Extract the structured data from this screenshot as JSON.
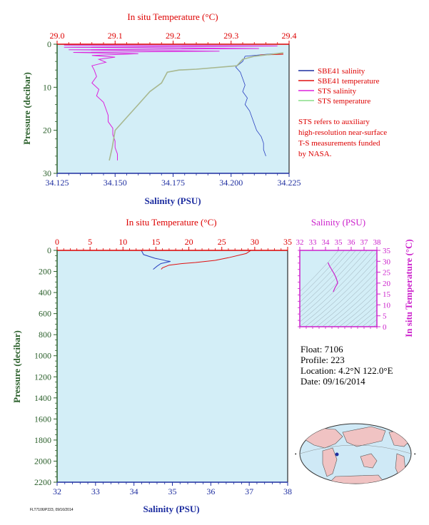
{
  "colors": {
    "panel_bg": "#d3eef7",
    "temperature_axis": "#dd0000",
    "salinity_axis": "#1e2ea0",
    "pressure_axis": "#2a5f2a",
    "sbe41_salinity": "#2a40c0",
    "sbe41_temperature": "#e01010",
    "sts_salinity": "#dd22dd",
    "sts_temperature": "#a8b890",
    "ts_diagram_axis": "#cc22cc"
  },
  "top_panel": {
    "temperature_label": "In situ Temperature (°C)",
    "salinity_label": "Salinity (PSU)",
    "pressure_label": "Pressure (decibar)",
    "temperature_ticks": [
      "29.0",
      "29.1",
      "29.2",
      "29.3",
      "29.4"
    ],
    "salinity_ticks": [
      "34.125",
      "34.150",
      "34.175",
      "34.200",
      "34.225"
    ],
    "pressure_ticks": [
      "0",
      "10",
      "20",
      "30"
    ]
  },
  "legend": {
    "items": [
      {
        "label": "SBE41 salinity",
        "color": "#1e2ea0"
      },
      {
        "label": "SBE41 temperature",
        "color": "#e01010"
      },
      {
        "label": "STS salinity",
        "color": "#dd22dd"
      },
      {
        "label": "STS temperature",
        "color": "#88dd88"
      }
    ],
    "note": [
      "STS refers to auxiliary",
      "high-resolution near-surface",
      "T-S measurements funded",
      "by NASA."
    ]
  },
  "bottom_panel": {
    "temperature_label": "In situ Temperature (°C)",
    "salinity_label": "Salinity (PSU)",
    "pressure_label": "Pressure (decibar)",
    "temperature_ticks": [
      "0",
      "5",
      "10",
      "15",
      "20",
      "25",
      "30",
      "35"
    ],
    "salinity_ticks": [
      "32",
      "33",
      "34",
      "35",
      "36",
      "37",
      "38"
    ],
    "pressure_ticks": [
      "0",
      "200",
      "400",
      "600",
      "800",
      "1000",
      "1200",
      "1400",
      "1600",
      "1800",
      "2000",
      "2200"
    ]
  },
  "ts_diagram": {
    "salinity_label": "Salinity (PSU)",
    "temperature_label": "In situ Temperature (°C)",
    "salinity_ticks": [
      "32",
      "33",
      "34",
      "35",
      "36",
      "37",
      "38"
    ],
    "temperature_ticks": [
      "0",
      "5",
      "10",
      "15",
      "20",
      "25",
      "30",
      "35"
    ]
  },
  "float_info": {
    "float": "Float:  7106",
    "profile": "Profile:  223",
    "location": "Location:  4.2°N  122.0°E",
    "date": "Date:  09/16/2014"
  },
  "footer_code": "FLT7106/P223, 09/16/2014",
  "chart_data": [
    {
      "type": "line",
      "panel": "near-surface profiles (top)",
      "xlabel": "Salinity (PSU)",
      "x2label": "In situ Temperature (°C)",
      "ylabel": "Pressure (decibar)",
      "salinity_lim": [
        34.125,
        34.225
      ],
      "temperature_lim": [
        29.0,
        29.4
      ],
      "pressure_lim": [
        0,
        30
      ],
      "y_inverted": true,
      "grid": false,
      "legend_position": "right",
      "series": [
        {
          "name": "SBE41 salinity",
          "variable": "salinity",
          "points": [
            [
              34.218,
              2.2
            ],
            [
              34.206,
              2.8
            ],
            [
              34.205,
              4.0
            ],
            [
              34.202,
              5.3
            ],
            [
              34.204,
              6.5
            ],
            [
              34.205,
              8.0
            ],
            [
              34.206,
              9.5
            ],
            [
              34.205,
              11.0
            ],
            [
              34.207,
              12.5
            ],
            [
              34.206,
              14.0
            ],
            [
              34.208,
              15.5
            ],
            [
              34.209,
              17.0
            ],
            [
              34.21,
              18.5
            ],
            [
              34.211,
              20.0
            ],
            [
              34.213,
              21.5
            ],
            [
              34.214,
              23.0
            ],
            [
              34.214,
              24.5
            ],
            [
              34.215,
              26.0
            ]
          ]
        },
        {
          "name": "SBE41 temperature",
          "variable": "temperature",
          "points": [
            [
              29.39,
              2.3
            ],
            [
              29.35,
              2.5
            ]
          ]
        },
        {
          "name": "STS salinity",
          "variable": "salinity",
          "points": [
            [
              34.128,
              0.2
            ],
            [
              34.22,
              0.4
            ],
            [
              34.128,
              0.7
            ],
            [
              34.212,
              1.0
            ],
            [
              34.13,
              1.3
            ],
            [
              34.195,
              1.6
            ],
            [
              34.132,
              1.9
            ],
            [
              34.16,
              2.2
            ],
            [
              34.14,
              2.6
            ],
            [
              34.15,
              3.0
            ],
            [
              34.143,
              3.5
            ],
            [
              34.146,
              4.2
            ],
            [
              34.14,
              5.0
            ],
            [
              34.141,
              6.0
            ],
            [
              34.142,
              7.5
            ],
            [
              34.14,
              9.0
            ],
            [
              34.143,
              10.5
            ],
            [
              34.142,
              12.0
            ],
            [
              34.145,
              13.5
            ],
            [
              34.146,
              15.0
            ],
            [
              34.147,
              16.5
            ],
            [
              34.147,
              18.0
            ],
            [
              34.149,
              19.5
            ],
            [
              34.149,
              21.0
            ],
            [
              34.15,
              22.5
            ],
            [
              34.15,
              24.0
            ],
            [
              34.151,
              25.5
            ],
            [
              34.151,
              27.0
            ]
          ]
        },
        {
          "name": "STS temperature",
          "variable": "temperature",
          "points": [
            [
              29.39,
              2.0
            ],
            [
              29.34,
              2.8
            ],
            [
              29.32,
              3.5
            ],
            [
              29.31,
              5.0
            ],
            [
              29.24,
              5.8
            ],
            [
              29.21,
              6.0
            ],
            [
              29.19,
              6.5
            ],
            [
              29.18,
              9.0
            ],
            [
              29.16,
              11.0
            ],
            [
              29.14,
              14.0
            ],
            [
              29.12,
              17.0
            ],
            [
              29.1,
              20.0
            ],
            [
              29.095,
              24.0
            ],
            [
              29.09,
              27.0
            ]
          ]
        }
      ]
    },
    {
      "type": "line",
      "panel": "full-depth profile (bottom)",
      "xlabel": "Salinity (PSU)",
      "x2label": "In situ Temperature (°C)",
      "ylabel": "Pressure (decibar)",
      "salinity_lim": [
        32,
        38
      ],
      "temperature_lim": [
        0,
        35
      ],
      "pressure_lim": [
        0,
        2200
      ],
      "y_inverted": true,
      "grid": false,
      "series": [
        {
          "name": "SBE41 salinity",
          "variable": "salinity",
          "points": [
            [
              34.2,
              0
            ],
            [
              34.2,
              5
            ],
            [
              34.25,
              40
            ],
            [
              34.55,
              75
            ],
            [
              34.75,
              90
            ],
            [
              34.85,
              100
            ],
            [
              34.95,
              105
            ],
            [
              34.7,
              125
            ],
            [
              34.6,
              150
            ],
            [
              34.5,
              180
            ]
          ]
        },
        {
          "name": "SBE41 temperature",
          "variable": "temperature",
          "points": [
            [
              29.4,
              0
            ],
            [
              29.3,
              5
            ],
            [
              28.7,
              30
            ],
            [
              26.0,
              70
            ],
            [
              24.0,
              95
            ],
            [
              21.0,
              115
            ],
            [
              19.0,
              125
            ],
            [
              17.0,
              140
            ],
            [
              16.0,
              165
            ],
            [
              15.8,
              180
            ]
          ]
        }
      ]
    },
    {
      "type": "scatter",
      "panel": "T-S diagram",
      "xlabel": "Salinity (PSU)",
      "ylabel": "In situ Temperature (°C)",
      "xlim": [
        32,
        38
      ],
      "ylim": [
        0,
        35
      ],
      "series": [
        {
          "name": "SBE41 T-S",
          "points": [
            [
              34.2,
              29.4
            ],
            [
              34.3,
              28.0
            ],
            [
              34.5,
              26.0
            ],
            [
              34.7,
              24.0
            ],
            [
              34.85,
              22.0
            ],
            [
              34.95,
              20.0
            ],
            [
              34.75,
              18.0
            ],
            [
              34.6,
              16.0
            ]
          ]
        }
      ]
    }
  ]
}
